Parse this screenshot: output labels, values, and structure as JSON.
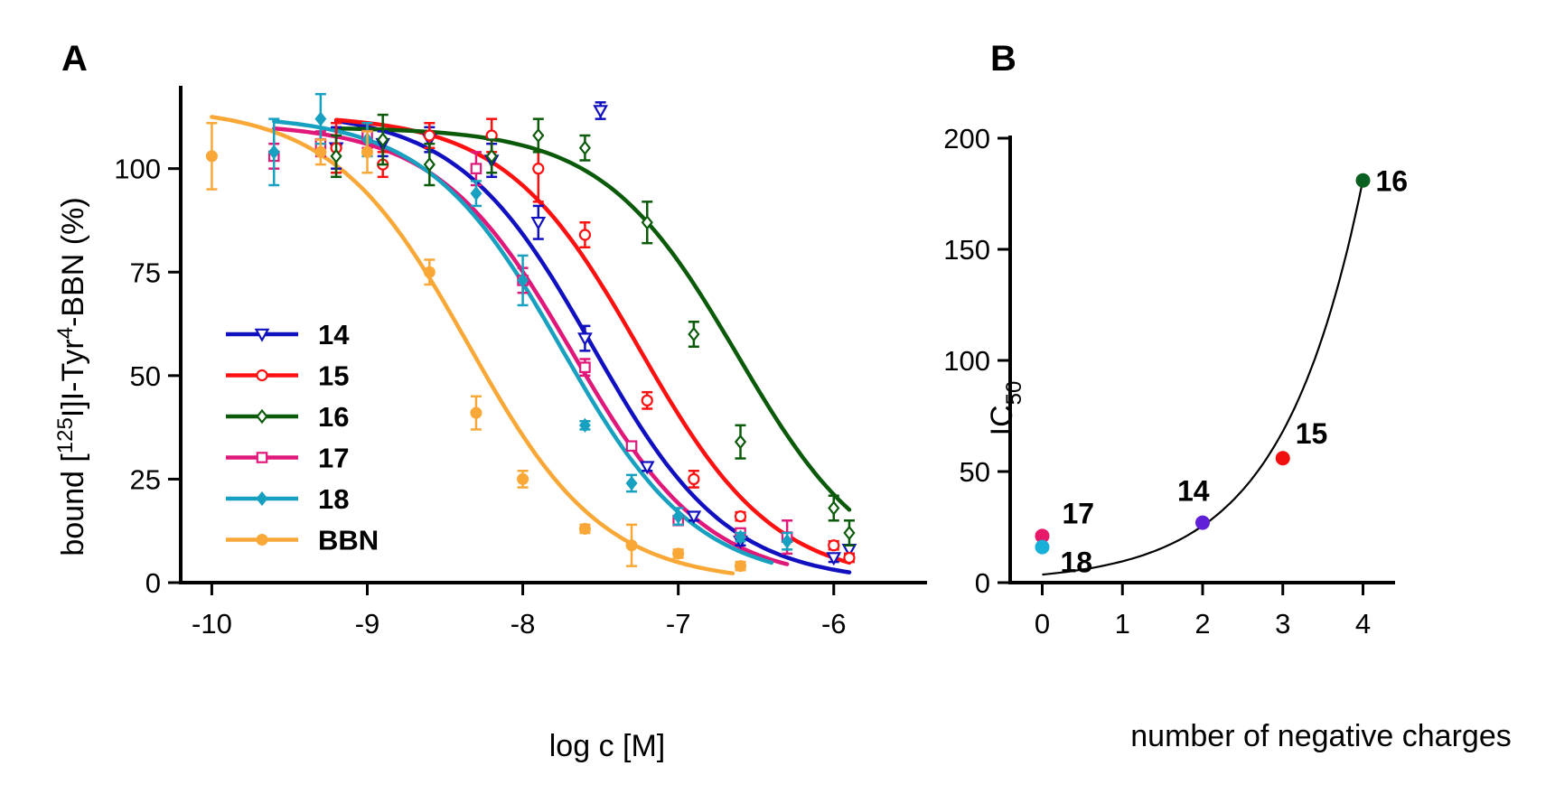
{
  "chart_data": [
    {
      "panel": "A",
      "type": "scatter",
      "xlabel": "log c [M]",
      "ylabel_parts": [
        "bound [",
        "125",
        "I]I-Tyr",
        "4",
        "-BBN (%)"
      ],
      "xlim": [
        -10.2,
        -5.4
      ],
      "ylim": [
        0,
        120
      ],
      "xticks": [
        -10,
        -9,
        -8,
        -7,
        -6
      ],
      "yticks": [
        0,
        25,
        50,
        75,
        100
      ],
      "grid": false,
      "legend_position": "bottom-left",
      "series": [
        {
          "name": "14",
          "color": "#1010c0",
          "marker": "triangle-down-open",
          "fit": {
            "top": 114,
            "bottom": 0,
            "logIC50": -7.55,
            "range": [
              -9.2,
              -5.9
            ]
          },
          "points": [
            [
              -9.2,
              105,
              5
            ],
            [
              -8.9,
              106,
              3
            ],
            [
              -8.6,
              107,
              3
            ],
            [
              -8.2,
              102,
              4
            ],
            [
              -7.9,
              87,
              4
            ],
            [
              -7.6,
              59,
              3
            ],
            [
              -7.5,
              114,
              2
            ],
            [
              -7.2,
              28,
              1
            ],
            [
              -6.9,
              16,
              1
            ],
            [
              -6.6,
              10,
              1
            ],
            [
              -6.0,
              6,
              1
            ],
            [
              -5.9,
              8,
              1
            ]
          ]
        },
        {
          "name": "15",
          "color": "#ff1010",
          "marker": "circle-open",
          "fit": {
            "top": 113,
            "bottom": 0,
            "logIC50": -7.25,
            "range": [
              -9.2,
              -5.9
            ]
          },
          "points": [
            [
              -9.2,
              105,
              6
            ],
            [
              -8.9,
              101,
              3
            ],
            [
              -8.6,
              108,
              3
            ],
            [
              -8.2,
              108,
              4
            ],
            [
              -7.9,
              100,
              8
            ],
            [
              -7.6,
              84,
              3
            ],
            [
              -7.2,
              44,
              2
            ],
            [
              -6.9,
              25,
              2
            ],
            [
              -6.6,
              16,
              1
            ],
            [
              -6.0,
              9,
              1
            ],
            [
              -5.9,
              6,
              1
            ]
          ]
        },
        {
          "name": "16",
          "color": "#0a5a0a",
          "marker": "diamond-open",
          "fit": {
            "top": 110,
            "bottom": 0,
            "logIC50": -6.62,
            "range": [
              -9.2,
              -5.9
            ]
          },
          "points": [
            [
              -9.2,
              103,
              5
            ],
            [
              -8.9,
              107,
              6
            ],
            [
              -8.6,
              101,
              5
            ],
            [
              -8.2,
              103,
              4
            ],
            [
              -7.9,
              108,
              4
            ],
            [
              -7.6,
              105,
              3
            ],
            [
              -7.2,
              87,
              5
            ],
            [
              -6.9,
              60,
              3
            ],
            [
              -6.6,
              34,
              4
            ],
            [
              -6.0,
              18,
              3
            ],
            [
              -5.9,
              12,
              3
            ]
          ]
        },
        {
          "name": "17",
          "color": "#e0187a",
          "marker": "square-open",
          "fit": {
            "top": 111,
            "bottom": 0,
            "logIC50": -7.68,
            "range": [
              -9.6,
              -6.3
            ]
          },
          "points": [
            [
              -9.6,
              103,
              3
            ],
            [
              -9.3,
              106,
              3
            ],
            [
              -9.0,
              108,
              3
            ],
            [
              -8.3,
              100,
              4
            ],
            [
              -8.0,
              73,
              3
            ],
            [
              -7.6,
              52,
              2
            ],
            [
              -7.3,
              33,
              1
            ],
            [
              -7.0,
              15,
              1
            ],
            [
              -6.6,
              12,
              1
            ],
            [
              -6.3,
              11,
              4
            ]
          ]
        },
        {
          "name": "18",
          "color": "#18a0c0",
          "marker": "diamond-filled",
          "fit": {
            "top": 113,
            "bottom": 0,
            "logIC50": -7.75,
            "range": [
              -9.6,
              -6.4
            ]
          },
          "points": [
            [
              -9.6,
              104,
              8
            ],
            [
              -9.3,
              112,
              6
            ],
            [
              -9.0,
              107,
              4
            ],
            [
              -8.3,
              94,
              3
            ],
            [
              -8.0,
              73,
              6
            ],
            [
              -7.6,
              38,
              1
            ],
            [
              -7.3,
              24,
              2
            ],
            [
              -7.0,
              16,
              2
            ],
            [
              -6.6,
              11,
              1
            ],
            [
              -6.3,
              10,
              2
            ]
          ]
        },
        {
          "name": "BBN",
          "color": "#f9a838",
          "marker": "circle-filled",
          "fit": {
            "top": 115,
            "bottom": 0,
            "logIC50": -8.35,
            "range": [
              -10,
              -6.65
            ]
          },
          "points": [
            [
              -10,
              103,
              8
            ],
            [
              -9.3,
              104,
              3
            ],
            [
              -9.0,
              104,
              5
            ],
            [
              -8.6,
              75,
              3
            ],
            [
              -8.3,
              41,
              4
            ],
            [
              -8.0,
              25,
              2
            ],
            [
              -7.6,
              13,
              1
            ],
            [
              -7.3,
              9,
              5
            ],
            [
              -7.0,
              7,
              1
            ],
            [
              -6.6,
              4,
              1
            ]
          ]
        }
      ]
    },
    {
      "panel": "B",
      "type": "scatter",
      "xlabel": "number of negative charges",
      "ylabel_main": "IC",
      "ylabel_sub": "50",
      "xlim": [
        -0.4,
        4.4
      ],
      "ylim": [
        0,
        200
      ],
      "xticks": [
        0,
        1,
        2,
        3,
        4
      ],
      "yticks": [
        0,
        50,
        100,
        150,
        200
      ],
      "grid": false,
      "fit": {
        "type": "exponential",
        "a": 3.6,
        "k": 0.98,
        "range": [
          0,
          4
        ]
      },
      "points": [
        {
          "label": "17",
          "x": 0,
          "y": 21,
          "color": "#e8186a"
        },
        {
          "label": "18",
          "x": 0,
          "y": 16,
          "color": "#18b0d8"
        },
        {
          "label": "14",
          "x": 2,
          "y": 27,
          "color": "#6020d8"
        },
        {
          "label": "15",
          "x": 3,
          "y": 56,
          "color": "#f01010"
        },
        {
          "label": "16",
          "x": 4,
          "y": 181,
          "color": "#0a6020"
        }
      ]
    }
  ]
}
